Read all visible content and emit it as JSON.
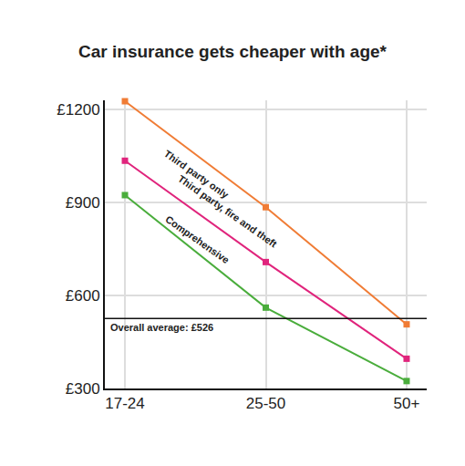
{
  "chart_data": {
    "type": "line",
    "title": "Car insurance gets cheaper with age*",
    "categories": [
      "17-24",
      "25-50",
      "50+"
    ],
    "series": [
      {
        "name": "Third party only",
        "color": "#f07c35",
        "values": [
          1227,
          885,
          507
        ]
      },
      {
        "name": "Third party, fire and theft",
        "color": "#e0247c",
        "values": [
          1035,
          708,
          396
        ]
      },
      {
        "name": "Comprehensive",
        "color": "#4aad3c",
        "values": [
          924,
          561,
          324
        ]
      }
    ],
    "ylim": [
      300,
      1230
    ],
    "yticks": [
      {
        "value": 300,
        "label": "£300"
      },
      {
        "value": 600,
        "label": "£600"
      },
      {
        "value": 900,
        "label": "£900"
      },
      {
        "value": 1200,
        "label": "£1200"
      }
    ],
    "grid": true,
    "marker": "square",
    "annotations": [
      {
        "text": "Overall average: £526",
        "value": 526
      }
    ]
  }
}
